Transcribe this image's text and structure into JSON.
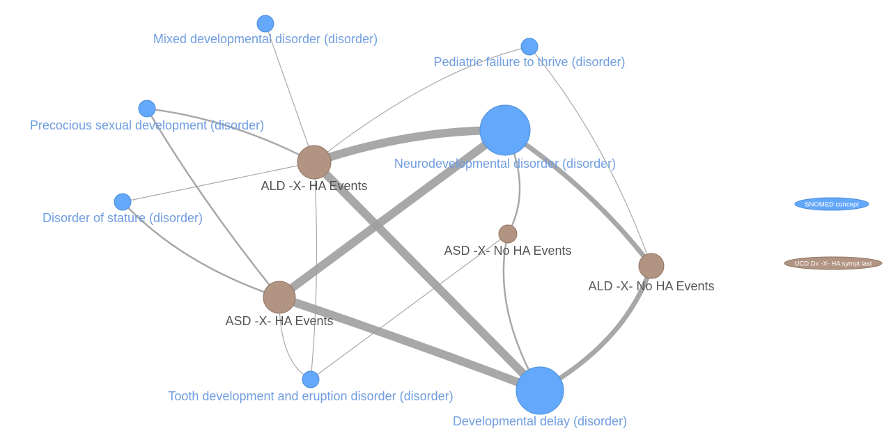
{
  "nodes": [
    {
      "id": "mixed",
      "label": "Mixed developmental disorder (disorder)",
      "kind": "concept"
    },
    {
      "id": "pftt",
      "label": "Pediatric failure to thrive (disorder)",
      "kind": "concept"
    },
    {
      "id": "precocious",
      "label": "Precocious sexual development (disorder)",
      "kind": "concept"
    },
    {
      "id": "neuro",
      "label": "Neurodevelopmental disorder (disorder)",
      "kind": "concept"
    },
    {
      "id": "ald_ha",
      "label": "ALD -X- HA Events",
      "kind": "dx"
    },
    {
      "id": "stature",
      "label": "Disorder of stature (disorder)",
      "kind": "concept"
    },
    {
      "id": "asd_noha",
      "label": "ASD -X- No HA Events",
      "kind": "dx"
    },
    {
      "id": "ald_noha",
      "label": "ALD -X- No HA Events",
      "kind": "dx"
    },
    {
      "id": "asd_ha",
      "label": "ASD -X- HA Events",
      "kind": "dx"
    },
    {
      "id": "tooth",
      "label": "Tooth development and eruption disorder (disorder)",
      "kind": "concept"
    },
    {
      "id": "devdelay",
      "label": "Developmental delay (disorder)",
      "kind": "concept"
    }
  ],
  "edges": [
    {
      "source": "ald_ha",
      "target": "neuro",
      "strength": "heavy"
    },
    {
      "source": "ald_ha",
      "target": "devdelay",
      "strength": "heavy"
    },
    {
      "source": "asd_ha",
      "target": "neuro",
      "strength": "heavy"
    },
    {
      "source": "asd_ha",
      "target": "devdelay",
      "strength": "heavy"
    },
    {
      "source": "neuro",
      "target": "ald_noha",
      "strength": "medium"
    },
    {
      "source": "ald_noha",
      "target": "devdelay",
      "strength": "medium"
    },
    {
      "source": "neuro",
      "target": "asd_noha",
      "strength": "light"
    },
    {
      "source": "asd_noha",
      "target": "devdelay",
      "strength": "light"
    },
    {
      "source": "asd_noha",
      "target": "tooth",
      "strength": "thin"
    },
    {
      "source": "mixed",
      "target": "ald_ha",
      "strength": "thin"
    },
    {
      "source": "pftt",
      "target": "ald_ha",
      "strength": "thin"
    },
    {
      "source": "pftt",
      "target": "ald_noha",
      "strength": "thin"
    },
    {
      "source": "precocious",
      "target": "ald_ha",
      "strength": "light"
    },
    {
      "source": "precocious",
      "target": "asd_ha",
      "strength": "light"
    },
    {
      "source": "stature",
      "target": "ald_ha",
      "strength": "thin"
    },
    {
      "source": "stature",
      "target": "asd_ha",
      "strength": "light"
    },
    {
      "source": "ald_ha",
      "target": "tooth",
      "strength": "thin"
    },
    {
      "source": "asd_ha",
      "target": "tooth",
      "strength": "thin"
    }
  ],
  "legend": [
    {
      "label": "SNOMED concept",
      "kind": "concept"
    },
    {
      "label": "UCD Dx -X- HA sympt last",
      "kind": "dx"
    }
  ],
  "colors": {
    "concept": "#63a8fb",
    "dx": "#b19482",
    "edge": "#9e9e9e"
  }
}
